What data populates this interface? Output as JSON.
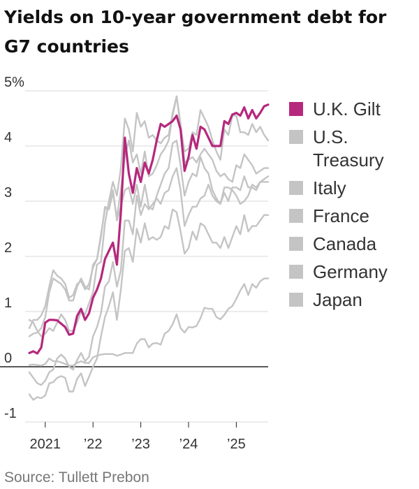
{
  "source": "Source: Tullett Prebon",
  "chart_data": {
    "type": "line",
    "title": "Yields on 10-year government debt for G7 countries",
    "xlabel": "",
    "ylabel": "",
    "x_start": "2020-09",
    "x_end": "2025-09",
    "x_ticks": [
      {
        "date": "2021-01",
        "label": "2021"
      },
      {
        "date": "2022-01",
        "label": "’22"
      },
      {
        "date": "2023-01",
        "label": "’23"
      },
      {
        "date": "2024-01",
        "label": "’24"
      },
      {
        "date": "2025-01",
        "label": "’25"
      }
    ],
    "y_ticks": [
      {
        "value": 5,
        "label": "5%"
      },
      {
        "value": 4,
        "label": "4"
      },
      {
        "value": 3,
        "label": "3"
      },
      {
        "value": 2,
        "label": "2"
      },
      {
        "value": 1,
        "label": "1"
      },
      {
        "value": 0,
        "label": "0"
      },
      {
        "value": -1,
        "label": "-1"
      }
    ],
    "ylim": [
      -1,
      5
    ],
    "grid": true,
    "legend": "right",
    "highlight_color": "#b5287c",
    "muted_color": "#c4c4c4",
    "x": [
      "2020-09",
      "2020-10",
      "2020-11",
      "2020-12",
      "2021-01",
      "2021-02",
      "2021-03",
      "2021-04",
      "2021-05",
      "2021-06",
      "2021-07",
      "2021-08",
      "2021-09",
      "2021-10",
      "2021-11",
      "2021-12",
      "2022-01",
      "2022-02",
      "2022-03",
      "2022-04",
      "2022-05",
      "2022-06",
      "2022-07",
      "2022-08",
      "2022-09",
      "2022-10",
      "2022-11",
      "2022-12",
      "2023-01",
      "2023-02",
      "2023-03",
      "2023-04",
      "2023-05",
      "2023-06",
      "2023-07",
      "2023-08",
      "2023-09",
      "2023-10",
      "2023-11",
      "2023-12",
      "2024-01",
      "2024-02",
      "2024-03",
      "2024-04",
      "2024-05",
      "2024-06",
      "2024-07",
      "2024-08",
      "2024-09",
      "2024-10",
      "2024-11",
      "2024-12",
      "2025-01",
      "2025-02",
      "2025-03",
      "2025-04",
      "2025-05",
      "2025-06",
      "2025-07",
      "2025-08",
      "2025-09"
    ],
    "series": [
      {
        "name": "U.K. Gilt",
        "highlight": true,
        "values": [
          0.25,
          0.28,
          0.24,
          0.35,
          0.8,
          0.85,
          0.85,
          0.84,
          0.78,
          0.72,
          0.58,
          0.6,
          0.92,
          1.05,
          0.85,
          0.97,
          1.25,
          1.4,
          1.6,
          1.95,
          2.1,
          2.25,
          1.85,
          2.8,
          4.15,
          3.5,
          3.15,
          3.6,
          3.35,
          3.7,
          3.5,
          3.75,
          4.1,
          4.4,
          4.35,
          4.4,
          4.45,
          4.55,
          4.3,
          3.55,
          3.8,
          4.2,
          3.95,
          4.35,
          4.3,
          4.15,
          4.0,
          4.0,
          4.0,
          4.45,
          4.4,
          4.57,
          4.6,
          4.55,
          4.7,
          4.5,
          4.65,
          4.5,
          4.6,
          4.72,
          4.75
        ]
      },
      {
        "name": "U.S. Treasury",
        "highlight": false,
        "values": [
          0.7,
          0.85,
          0.85,
          0.93,
          1.1,
          1.45,
          1.75,
          1.65,
          1.6,
          1.5,
          1.25,
          1.3,
          1.5,
          1.55,
          1.4,
          1.5,
          1.8,
          1.95,
          2.35,
          2.9,
          2.85,
          3.15,
          2.7,
          3.2,
          3.8,
          4.1,
          3.7,
          3.85,
          3.5,
          3.9,
          3.45,
          3.5,
          3.65,
          3.85,
          3.95,
          4.1,
          4.55,
          4.9,
          4.35,
          3.9,
          3.95,
          4.25,
          4.2,
          4.65,
          4.5,
          4.35,
          4.1,
          3.9,
          3.75,
          4.3,
          4.2,
          4.55,
          4.55,
          4.25,
          4.25,
          4.2,
          4.4,
          4.25,
          4.35,
          4.2,
          4.1
        ]
      },
      {
        "name": "Italy",
        "highlight": false,
        "values": [
          0.85,
          0.8,
          0.65,
          0.55,
          0.6,
          0.7,
          0.65,
          0.8,
          0.95,
          0.85,
          0.65,
          0.65,
          0.8,
          1.0,
          0.95,
          1.15,
          1.35,
          1.85,
          1.9,
          2.6,
          3.0,
          3.35,
          3.1,
          3.6,
          4.5,
          4.3,
          3.9,
          4.6,
          4.35,
          4.45,
          4.15,
          4.2,
          4.1,
          4.05,
          4.15,
          4.2,
          4.6,
          4.9,
          4.4,
          3.7,
          3.75,
          3.8,
          3.7,
          3.85,
          3.95,
          3.85,
          3.75,
          3.55,
          3.45,
          3.5,
          3.4,
          3.35,
          3.65,
          3.6,
          3.85,
          3.75,
          3.65,
          3.5,
          3.55,
          3.6,
          3.6
        ]
      },
      {
        "name": "France",
        "highlight": false,
        "values": [
          -0.1,
          -0.2,
          -0.3,
          -0.33,
          -0.25,
          -0.1,
          -0.05,
          0.15,
          0.22,
          0.15,
          0.0,
          -0.05,
          0.12,
          0.25,
          0.1,
          0.18,
          0.55,
          0.72,
          0.97,
          1.45,
          1.55,
          1.9,
          1.45,
          1.75,
          2.65,
          2.65,
          2.4,
          3.1,
          2.75,
          2.95,
          2.85,
          2.95,
          3.05,
          2.95,
          3.15,
          3.2,
          3.45,
          3.6,
          3.2,
          2.55,
          2.75,
          2.9,
          2.9,
          3.05,
          3.1,
          3.3,
          3.1,
          3.0,
          2.95,
          3.15,
          3.0,
          3.25,
          3.25,
          3.2,
          3.45,
          3.25,
          3.25,
          3.2,
          3.35,
          3.4,
          3.45
        ]
      },
      {
        "name": "Canada",
        "highlight": false,
        "values": [
          0.55,
          0.6,
          0.62,
          0.7,
          0.9,
          1.35,
          1.6,
          1.55,
          1.5,
          1.4,
          1.2,
          1.2,
          1.45,
          1.6,
          1.45,
          1.4,
          1.85,
          1.95,
          2.4,
          2.85,
          2.9,
          3.2,
          2.65,
          2.9,
          3.2,
          3.25,
          2.95,
          3.3,
          2.9,
          3.3,
          2.9,
          2.85,
          3.1,
          3.3,
          3.5,
          3.6,
          4.05,
          4.1,
          3.65,
          3.1,
          3.35,
          3.5,
          3.45,
          3.8,
          3.6,
          3.5,
          3.2,
          3.05,
          2.95,
          3.25,
          3.25,
          3.2,
          3.1,
          2.95,
          3.0,
          3.1,
          3.3,
          3.25,
          3.35,
          3.35,
          3.35
        ]
      },
      {
        "name": "Germany",
        "highlight": false,
        "values": [
          -0.5,
          -0.6,
          -0.55,
          -0.57,
          -0.52,
          -0.3,
          -0.28,
          -0.2,
          -0.17,
          -0.2,
          -0.45,
          -0.45,
          -0.22,
          -0.12,
          -0.35,
          -0.18,
          0.0,
          0.15,
          0.55,
          0.9,
          1.1,
          1.35,
          0.85,
          1.4,
          2.1,
          2.15,
          1.9,
          2.5,
          2.25,
          2.6,
          2.3,
          2.35,
          2.3,
          2.35,
          2.55,
          2.5,
          2.85,
          2.8,
          2.45,
          2.05,
          2.15,
          2.45,
          2.3,
          2.6,
          2.55,
          2.4,
          2.25,
          2.25,
          2.15,
          2.35,
          2.15,
          2.35,
          2.55,
          2.4,
          2.75,
          2.45,
          2.55,
          2.55,
          2.65,
          2.75,
          2.75
        ]
      },
      {
        "name": "Japan",
        "highlight": false,
        "values": [
          0.03,
          0.04,
          0.03,
          0.02,
          0.05,
          0.15,
          0.1,
          0.1,
          0.08,
          0.05,
          0.02,
          0.02,
          0.07,
          0.1,
          0.07,
          0.07,
          0.17,
          0.2,
          0.22,
          0.23,
          0.23,
          0.23,
          0.2,
          0.22,
          0.25,
          0.25,
          0.25,
          0.42,
          0.5,
          0.5,
          0.35,
          0.42,
          0.43,
          0.4,
          0.6,
          0.65,
          0.77,
          0.95,
          0.7,
          0.62,
          0.72,
          0.71,
          0.74,
          0.88,
          1.07,
          1.05,
          1.05,
          0.9,
          0.86,
          0.94,
          1.05,
          1.1,
          1.23,
          1.38,
          1.5,
          1.3,
          1.5,
          1.43,
          1.55,
          1.6,
          1.6
        ]
      }
    ]
  }
}
